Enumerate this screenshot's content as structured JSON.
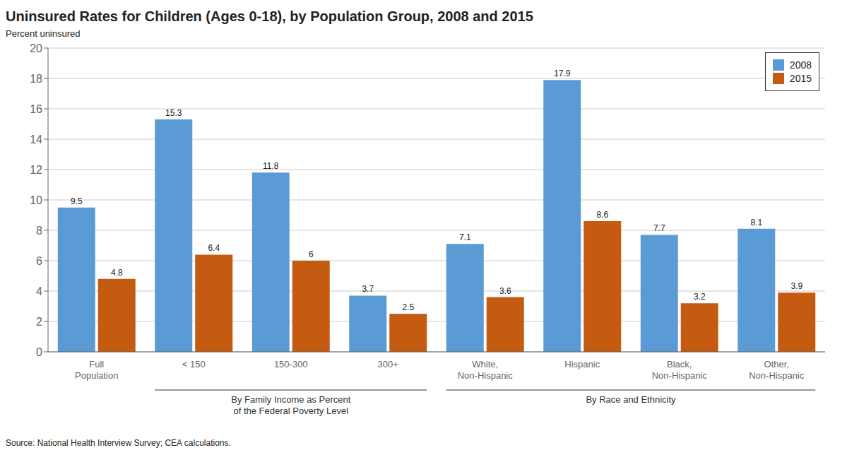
{
  "chart_data": {
    "type": "bar",
    "title": "Uninsured Rates for Children (Ages 0-18), by Population Group, 2008 and 2015",
    "ylabel": "Percent uninsured",
    "source": "Source: National Health Interview Survey; CEA calculations.",
    "annotations": [
      "By Family Income as Percent\nof the Federal Poverty Level",
      "By Race and Ethnicity"
    ],
    "categories": [
      "Full\nPopulation",
      "< 150",
      "150-300",
      "300+",
      "White,\nNon-Hispanic",
      "Hispanic",
      "Black,\nNon-Hispanic",
      "Other,\nNon-Hispanic"
    ],
    "series": [
      {
        "name": "2008",
        "color": "#5B9BD5",
        "values": [
          9.5,
          15.3,
          11.8,
          3.7,
          7.1,
          17.9,
          7.7,
          8.1
        ]
      },
      {
        "name": "2015",
        "color": "#C55A11",
        "values": [
          4.8,
          6.4,
          6.0,
          2.5,
          3.6,
          8.6,
          3.2,
          3.9
        ]
      }
    ],
    "ylim": [
      0,
      20
    ],
    "yticks": [
      0,
      2,
      4,
      6,
      8,
      10,
      12,
      14,
      16,
      18,
      20
    ],
    "grid": true,
    "legend": "upper right",
    "data_labels": true
  }
}
